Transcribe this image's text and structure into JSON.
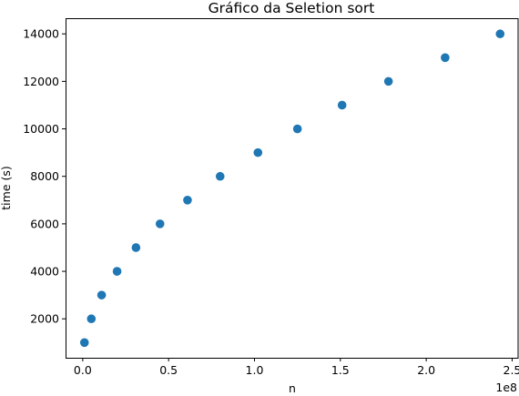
{
  "chart_data": {
    "type": "scatter",
    "title": "Gráfico da Seletion sort",
    "xlabel": "n",
    "ylabel": "time (s)",
    "x_offset_label": "1e8",
    "marker_color": "#1f77b4",
    "grid": false,
    "xlim": [
      -0.1,
      2.54
    ],
    "ylim": [
      360,
      14660
    ],
    "x_ticks": [
      0.0,
      0.5,
      1.0,
      1.5,
      2.0,
      2.5
    ],
    "x_tick_labels": [
      "0.0",
      "0.5",
      "1.0",
      "1.5",
      "2.0",
      "2.5"
    ],
    "y_ticks": [
      2000,
      4000,
      6000,
      8000,
      10000,
      12000,
      14000
    ],
    "y_tick_labels": [
      "2000",
      "4000",
      "6000",
      "8000",
      "10000",
      "12000",
      "14000"
    ],
    "x": [
      0.01,
      0.05,
      0.11,
      0.2,
      0.31,
      0.45,
      0.61,
      0.8,
      1.02,
      1.25,
      1.51,
      1.78,
      2.11,
      2.43
    ],
    "y": [
      1000,
      2000,
      3000,
      4000,
      5000,
      6000,
      7000,
      8000,
      9000,
      10000,
      11000,
      12000,
      13000,
      14000
    ]
  }
}
